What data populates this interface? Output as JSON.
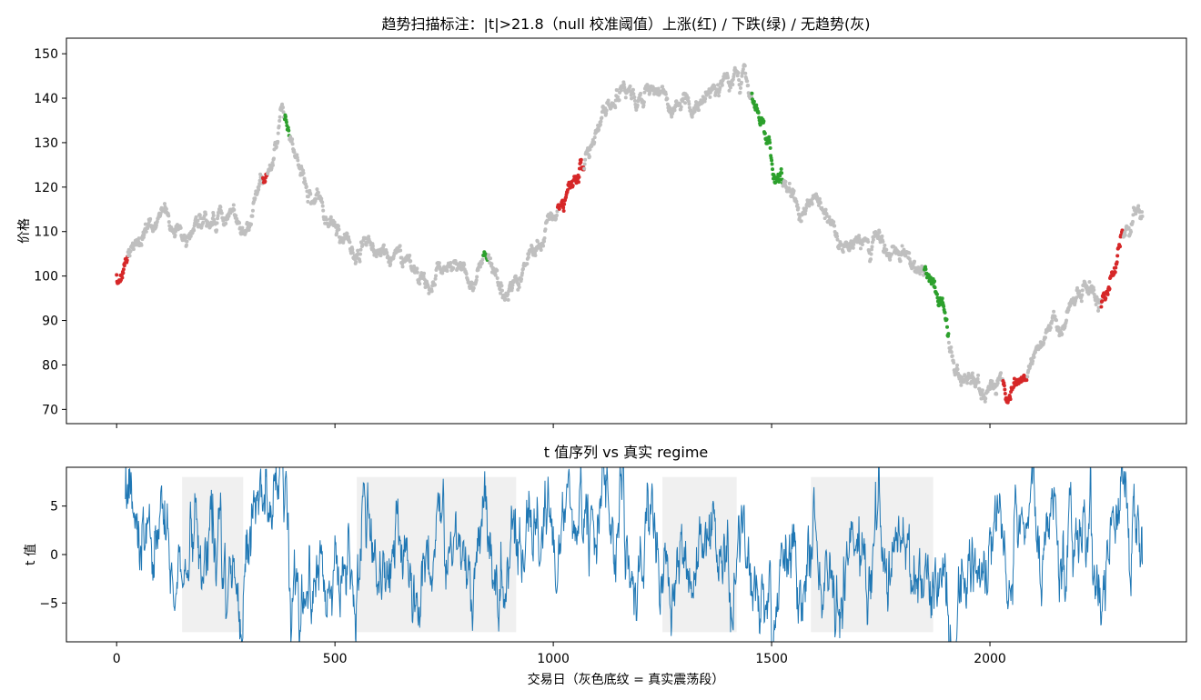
{
  "chart_data": [
    {
      "type": "scatter",
      "title": "趋势扫描标注：|t|>21.8（null 校准阈值）上涨(红) / 下跌(绿) / 无趋势(灰)",
      "ylabel": "价格",
      "xlim": [
        -115,
        2450
      ],
      "ylim": [
        66.8,
        153.5
      ],
      "yticks": [
        70,
        80,
        90,
        100,
        110,
        120,
        130,
        140,
        150
      ],
      "xticks": [
        0,
        500,
        1000,
        1500,
        2000
      ],
      "colors": {
        "up": "#d62728",
        "down": "#2ca02c",
        "none": "#bfbfbf"
      },
      "legend": "none",
      "path_keypoints": [
        [
          0,
          100
        ],
        [
          15,
          100
        ],
        [
          25,
          102
        ],
        [
          40,
          106
        ],
        [
          60,
          109
        ],
        [
          80,
          110
        ],
        [
          100,
          111
        ],
        [
          120,
          111
        ],
        [
          140,
          112
        ],
        [
          160,
          111
        ],
        [
          180,
          112
        ],
        [
          200,
          114
        ],
        [
          220,
          112
        ],
        [
          240,
          112
        ],
        [
          260,
          112
        ],
        [
          280,
          112
        ],
        [
          300,
          111
        ],
        [
          320,
          118
        ],
        [
          335,
          122
        ],
        [
          345,
          124
        ],
        [
          360,
          129
        ],
        [
          375,
          133
        ],
        [
          385,
          133
        ],
        [
          395,
          132
        ],
        [
          410,
          123
        ],
        [
          430,
          118
        ],
        [
          450,
          116
        ],
        [
          470,
          114
        ],
        [
          490,
          113
        ],
        [
          510,
          109
        ],
        [
          530,
          107
        ],
        [
          550,
          106
        ],
        [
          570,
          106
        ],
        [
          590,
          105
        ],
        [
          610,
          105
        ],
        [
          630,
          104
        ],
        [
          650,
          104
        ],
        [
          670,
          102
        ],
        [
          690,
          100
        ],
        [
          700,
          98
        ],
        [
          720,
          99
        ],
        [
          740,
          101
        ],
        [
          760,
          101
        ],
        [
          780,
          101
        ],
        [
          800,
          100
        ],
        [
          820,
          99
        ],
        [
          840,
          104
        ],
        [
          860,
          101
        ],
        [
          880,
          95
        ],
        [
          890,
          96
        ],
        [
          900,
          98
        ],
        [
          920,
          100
        ],
        [
          940,
          103
        ],
        [
          960,
          106
        ],
        [
          980,
          108
        ],
        [
          1000,
          110
        ],
        [
          1010,
          114
        ],
        [
          1025,
          116
        ],
        [
          1040,
          120
        ],
        [
          1055,
          124
        ],
        [
          1070,
          126
        ],
        [
          1085,
          128
        ],
        [
          1100,
          132
        ],
        [
          1115,
          136
        ],
        [
          1130,
          138
        ],
        [
          1145,
          140
        ],
        [
          1160,
          142
        ],
        [
          1175,
          143
        ],
        [
          1190,
          140
        ],
        [
          1205,
          142
        ],
        [
          1215,
          143
        ],
        [
          1230,
          144
        ],
        [
          1245,
          142
        ],
        [
          1260,
          139
        ],
        [
          1275,
          137
        ],
        [
          1290,
          138
        ],
        [
          1305,
          140
        ],
        [
          1320,
          139
        ],
        [
          1335,
          138
        ],
        [
          1350,
          140
        ],
        [
          1365,
          141
        ],
        [
          1380,
          142
        ],
        [
          1400,
          144
        ],
        [
          1415,
          145
        ],
        [
          1425,
          144
        ],
        [
          1440,
          145
        ],
        [
          1455,
          141
        ],
        [
          1465,
          138
        ],
        [
          1480,
          135
        ],
        [
          1495,
          130
        ],
        [
          1510,
          123
        ],
        [
          1525,
          120
        ],
        [
          1540,
          117
        ],
        [
          1555,
          114
        ],
        [
          1570,
          112
        ],
        [
          1585,
          113
        ],
        [
          1600,
          114
        ],
        [
          1615,
          116
        ],
        [
          1630,
          113
        ],
        [
          1645,
          111
        ],
        [
          1660,
          110
        ],
        [
          1680,
          109
        ],
        [
          1700,
          108
        ],
        [
          1720,
          108
        ],
        [
          1740,
          108
        ],
        [
          1760,
          107
        ],
        [
          1780,
          106
        ],
        [
          1800,
          104
        ],
        [
          1815,
          103
        ],
        [
          1830,
          102
        ],
        [
          1850,
          103
        ],
        [
          1860,
          101
        ],
        [
          1875,
          97
        ],
        [
          1890,
          92
        ],
        [
          1905,
          86
        ],
        [
          1920,
          81
        ],
        [
          1935,
          77
        ],
        [
          1950,
          75
        ],
        [
          1970,
          73
        ],
        [
          1990,
          72
        ],
        [
          2010,
          72
        ],
        [
          2030,
          75
        ],
        [
          2050,
          75
        ],
        [
          2070,
          76
        ],
        [
          2085,
          79
        ],
        [
          2100,
          83
        ],
        [
          2120,
          87
        ],
        [
          2140,
          89
        ],
        [
          2160,
          91
        ],
        [
          2180,
          92
        ],
        [
          2200,
          94
        ],
        [
          2220,
          94
        ],
        [
          2240,
          94
        ],
        [
          2255,
          93
        ],
        [
          2270,
          95
        ],
        [
          2290,
          103
        ],
        [
          2305,
          109
        ],
        [
          2320,
          113
        ],
        [
          2340,
          115
        ]
      ],
      "up_segments": [
        [
          0,
          25
        ],
        [
          335,
          345
        ],
        [
          1010,
          1070
        ],
        [
          2030,
          2085
        ],
        [
          2255,
          2305
        ]
      ],
      "down_segments": [
        [
          385,
          395
        ],
        [
          840,
          850
        ],
        [
          1455,
          1525
        ],
        [
          1850,
          1905
        ]
      ],
      "approx_points": 2350
    },
    {
      "type": "line",
      "title": "t 值序列 vs 真实 regime",
      "ylabel": "t 值",
      "xlabel": "交易日（灰色底纹 = 真实震荡段）",
      "xlim": [
        -115,
        2450
      ],
      "ylim": [
        -9,
        9
      ],
      "yticks": [
        -5,
        0,
        5
      ],
      "xticks": [
        0,
        500,
        1000,
        1500,
        2000
      ],
      "series_color": "#1f77b4",
      "regime_band_range": [
        -8,
        8
      ],
      "regime_band_color": "#f0f0f0",
      "regime_bands": [
        [
          150,
          290
        ],
        [
          550,
          915
        ],
        [
          1250,
          1420
        ],
        [
          1590,
          1870
        ]
      ]
    }
  ]
}
